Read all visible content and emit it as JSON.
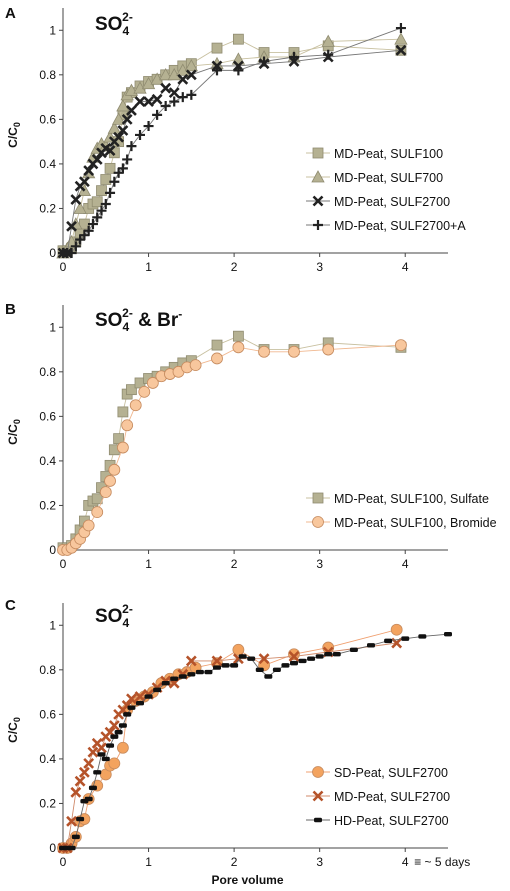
{
  "chart_data": [
    {
      "type": "scatter",
      "panel_label": "A",
      "title_main": "SO",
      "title_sup": "2-",
      "title_sub": "4",
      "ylabel_main": "C/C",
      "ylabel_sub": "0",
      "xlabel": "",
      "xlim": [
        0,
        4.5
      ],
      "ylim": [
        0,
        1.1
      ],
      "x_ticks": [
        "0",
        "1",
        "2",
        "3",
        "4"
      ],
      "y_ticks": [
        "0",
        "0.2",
        "0.4",
        "0.6",
        "0.8",
        "1"
      ],
      "legend_position": "bottom-right",
      "series": [
        {
          "name": "MD-Peat, SULF100",
          "marker": "square",
          "color": "#b5b192",
          "line": "#c8c0a0",
          "x": [
            0.0,
            0.05,
            0.1,
            0.15,
            0.2,
            0.25,
            0.3,
            0.35,
            0.4,
            0.45,
            0.5,
            0.55,
            0.6,
            0.65,
            0.7,
            0.75,
            0.8,
            0.9,
            1.0,
            1.1,
            1.2,
            1.3,
            1.4,
            1.5,
            1.8,
            2.05,
            2.35,
            2.7,
            3.1,
            3.95
          ],
          "y": [
            0.01,
            0.01,
            0.02,
            0.05,
            0.09,
            0.13,
            0.2,
            0.22,
            0.23,
            0.28,
            0.33,
            0.38,
            0.45,
            0.5,
            0.62,
            0.7,
            0.72,
            0.75,
            0.77,
            0.78,
            0.8,
            0.82,
            0.84,
            0.85,
            0.92,
            0.96,
            0.9,
            0.9,
            0.93,
            0.91
          ]
        },
        {
          "name": "MD-Peat, SULF700",
          "marker": "triangle",
          "color": "#b5b192",
          "line": "#c8c0a0",
          "x": [
            0.0,
            0.05,
            0.1,
            0.15,
            0.2,
            0.25,
            0.3,
            0.35,
            0.4,
            0.45,
            0.5,
            0.55,
            0.6,
            0.65,
            0.7,
            0.75,
            0.8,
            0.9,
            1.0,
            1.1,
            1.2,
            1.3,
            1.4,
            1.5,
            1.8,
            2.05,
            2.35,
            2.7,
            3.1,
            3.95
          ],
          "y": [
            0.0,
            0.02,
            0.05,
            0.13,
            0.2,
            0.28,
            0.36,
            0.43,
            0.47,
            0.49,
            0.48,
            0.52,
            0.56,
            0.6,
            0.66,
            0.71,
            0.73,
            0.74,
            0.76,
            0.78,
            0.8,
            0.8,
            0.82,
            0.84,
            0.85,
            0.87,
            0.88,
            0.88,
            0.95,
            0.96
          ]
        },
        {
          "name": "MD-Peat, SULF2700",
          "marker": "x",
          "color": "#222222",
          "line": "#777777",
          "x": [
            0.0,
            0.05,
            0.1,
            0.15,
            0.2,
            0.25,
            0.3,
            0.35,
            0.4,
            0.45,
            0.5,
            0.55,
            0.6,
            0.65,
            0.7,
            0.75,
            0.8,
            0.9,
            1.0,
            1.1,
            1.2,
            1.3,
            1.4,
            1.5,
            1.8,
            2.05,
            2.35,
            2.7,
            3.1,
            3.95
          ],
          "y": [
            0.0,
            0.0,
            0.12,
            0.24,
            0.3,
            0.32,
            0.37,
            0.4,
            0.42,
            0.45,
            0.47,
            0.46,
            0.5,
            0.52,
            0.55,
            0.6,
            0.64,
            0.68,
            0.68,
            0.69,
            0.74,
            0.72,
            0.78,
            0.8,
            0.84,
            0.84,
            0.85,
            0.86,
            0.88,
            0.91
          ]
        },
        {
          "name": "MD-Peat, SULF2700+A",
          "marker": "plus",
          "color": "#222222",
          "line": "#777777",
          "x": [
            0.0,
            0.05,
            0.1,
            0.15,
            0.2,
            0.25,
            0.3,
            0.35,
            0.4,
            0.45,
            0.5,
            0.55,
            0.6,
            0.65,
            0.7,
            0.75,
            0.8,
            0.9,
            1.0,
            1.1,
            1.2,
            1.3,
            1.4,
            1.5,
            1.8,
            2.05,
            2.35,
            2.7,
            3.1,
            3.95
          ],
          "y": [
            0.0,
            0.0,
            0.0,
            0.03,
            0.06,
            0.08,
            0.1,
            0.13,
            0.16,
            0.19,
            0.22,
            0.27,
            0.32,
            0.36,
            0.38,
            0.42,
            0.48,
            0.53,
            0.57,
            0.62,
            0.66,
            0.68,
            0.7,
            0.71,
            0.82,
            0.82,
            0.86,
            0.88,
            0.89,
            1.01
          ]
        }
      ]
    },
    {
      "type": "scatter",
      "panel_label": "B",
      "title_main": "SO",
      "title_sup": "2-",
      "title_sub": "4",
      "title_rest": " & Br",
      "title_sup2": "-",
      "ylabel_main": "C/C",
      "ylabel_sub": "0",
      "xlabel": "",
      "xlim": [
        0,
        4.5
      ],
      "ylim": [
        0,
        1.1
      ],
      "x_ticks": [
        "0",
        "1",
        "2",
        "3",
        "4"
      ],
      "y_ticks": [
        "0",
        "0.2",
        "0.4",
        "0.6",
        "0.8",
        "1"
      ],
      "legend_position": "bottom-right",
      "series": [
        {
          "name": "MD-Peat, SULF100, Sulfate",
          "marker": "square",
          "color": "#b5b192",
          "line": "#c8c0a0",
          "x": [
            0.0,
            0.05,
            0.1,
            0.15,
            0.2,
            0.25,
            0.3,
            0.35,
            0.4,
            0.45,
            0.5,
            0.55,
            0.6,
            0.65,
            0.7,
            0.75,
            0.8,
            0.9,
            1.0,
            1.1,
            1.2,
            1.3,
            1.4,
            1.5,
            1.8,
            2.05,
            2.35,
            2.7,
            3.1,
            3.95
          ],
          "y": [
            0.01,
            0.01,
            0.02,
            0.05,
            0.09,
            0.13,
            0.2,
            0.22,
            0.23,
            0.28,
            0.33,
            0.38,
            0.45,
            0.5,
            0.62,
            0.7,
            0.72,
            0.75,
            0.77,
            0.78,
            0.8,
            0.82,
            0.84,
            0.85,
            0.92,
            0.96,
            0.9,
            0.9,
            0.93,
            0.91
          ]
        },
        {
          "name": "MD-Peat, SULF100, Bromide",
          "marker": "circle",
          "color": "#f8c79d",
          "line": "#f0b890",
          "x": [
            0.0,
            0.05,
            0.1,
            0.15,
            0.2,
            0.25,
            0.3,
            0.4,
            0.5,
            0.55,
            0.6,
            0.7,
            0.75,
            0.85,
            0.95,
            1.05,
            1.15,
            1.25,
            1.35,
            1.45,
            1.55,
            1.8,
            2.05,
            2.35,
            2.7,
            3.1,
            3.95
          ],
          "y": [
            0.0,
            0.0,
            0.01,
            0.03,
            0.05,
            0.08,
            0.11,
            0.17,
            0.26,
            0.31,
            0.36,
            0.46,
            0.56,
            0.65,
            0.71,
            0.75,
            0.78,
            0.79,
            0.8,
            0.82,
            0.83,
            0.86,
            0.91,
            0.89,
            0.89,
            0.9,
            0.92
          ]
        }
      ]
    },
    {
      "type": "scatter",
      "panel_label": "C",
      "title_main": "SO",
      "title_sup": "2-",
      "title_sub": "4",
      "ylabel_main": "C/C",
      "ylabel_sub": "0",
      "xlabel": "Pore volume",
      "xlim": [
        0,
        4.5
      ],
      "ylim": [
        0,
        1.1
      ],
      "x_ticks": [
        "0",
        "1",
        "2",
        "3",
        "4"
      ],
      "x_annotation": "≡ ~ 5 days",
      "y_ticks": [
        "0",
        "0.2",
        "0.4",
        "0.6",
        "0.8",
        "1"
      ],
      "legend_position": "bottom-right",
      "series": [
        {
          "name": "SD-Peat, SULF2700",
          "marker": "circle",
          "color": "#f3a35f",
          "line": "#f0a070",
          "x": [
            0.0,
            0.05,
            0.1,
            0.15,
            0.2,
            0.25,
            0.3,
            0.4,
            0.5,
            0.55,
            0.6,
            0.7,
            0.75,
            0.85,
            0.95,
            1.05,
            1.15,
            1.25,
            1.35,
            1.45,
            1.55,
            1.8,
            2.05,
            2.35,
            2.7,
            3.1,
            3.9
          ],
          "y": [
            0.0,
            0.0,
            0.02,
            0.05,
            0.12,
            0.13,
            0.22,
            0.28,
            0.33,
            0.37,
            0.38,
            0.45,
            0.62,
            0.66,
            0.68,
            0.7,
            0.74,
            0.76,
            0.78,
            0.79,
            0.81,
            0.83,
            0.89,
            0.82,
            0.87,
            0.9,
            0.98
          ]
        },
        {
          "name": "MD-Peat, SULF2700",
          "marker": "x",
          "color": "#b5532a",
          "line": "#d08a6a",
          "x": [
            0.0,
            0.05,
            0.1,
            0.15,
            0.2,
            0.25,
            0.3,
            0.35,
            0.4,
            0.45,
            0.5,
            0.55,
            0.6,
            0.65,
            0.7,
            0.75,
            0.8,
            0.9,
            1.0,
            1.1,
            1.2,
            1.3,
            1.4,
            1.5,
            1.8,
            2.05,
            2.35,
            2.7,
            3.1,
            3.9
          ],
          "y": [
            0.0,
            0.0,
            0.12,
            0.25,
            0.3,
            0.34,
            0.38,
            0.43,
            0.47,
            0.45,
            0.5,
            0.52,
            0.55,
            0.6,
            0.62,
            0.64,
            0.67,
            0.68,
            0.69,
            0.72,
            0.75,
            0.74,
            0.78,
            0.84,
            0.84,
            0.85,
            0.85,
            0.86,
            0.88,
            0.92
          ]
        },
        {
          "name": "HD-Peat, SULF2700",
          "marker": "dash",
          "color": "#111111",
          "line": "#666666",
          "x": [
            0.0,
            0.05,
            0.1,
            0.15,
            0.2,
            0.25,
            0.3,
            0.35,
            0.4,
            0.45,
            0.5,
            0.55,
            0.6,
            0.65,
            0.7,
            0.75,
            0.8,
            0.9,
            1.0,
            1.1,
            1.2,
            1.3,
            1.4,
            1.5,
            1.6,
            1.7,
            1.8,
            1.9,
            2.0,
            2.1,
            2.2,
            2.3,
            2.4,
            2.5,
            2.6,
            2.7,
            2.8,
            2.9,
            3.0,
            3.1,
            3.2,
            3.4,
            3.6,
            3.8,
            4.0,
            4.2,
            4.5
          ],
          "y": [
            0.0,
            0.0,
            0.0,
            0.05,
            0.13,
            0.21,
            0.22,
            0.27,
            0.34,
            0.42,
            0.4,
            0.46,
            0.5,
            0.52,
            0.55,
            0.6,
            0.63,
            0.65,
            0.68,
            0.71,
            0.74,
            0.76,
            0.77,
            0.78,
            0.79,
            0.79,
            0.81,
            0.82,
            0.82,
            0.86,
            0.85,
            0.8,
            0.77,
            0.8,
            0.82,
            0.83,
            0.84,
            0.85,
            0.86,
            0.87,
            0.87,
            0.89,
            0.91,
            0.93,
            0.94,
            0.95,
            0.96
          ]
        }
      ]
    }
  ]
}
